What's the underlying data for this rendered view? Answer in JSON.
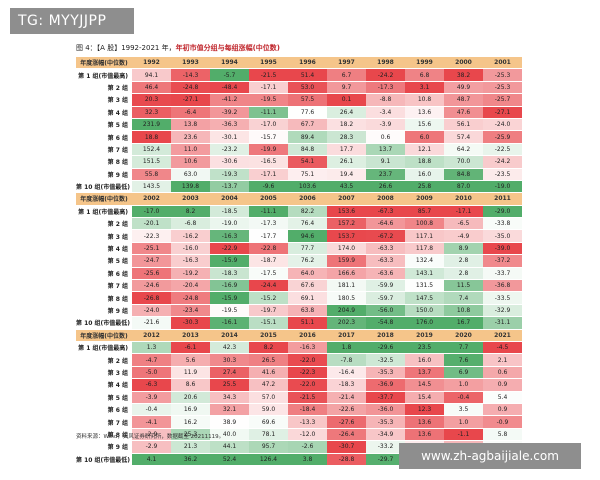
{
  "watermark_top": "TG: MYYJJPP",
  "watermark_bottom": "www.zh-agbaijiale.com",
  "title_prefix": "图 4：【A 股】1992-2021 年，",
  "title_highlight": "年初市值分组与每组涨幅(中位数)",
  "source": "资料来源：Wind，天风证券研究所，数据截至 20211119。",
  "header_label": "年度涨幅(中位数)",
  "row_labels": [
    "第 1 组(市值最高)",
    "第 2 组",
    "第 3 组",
    "第 4 组",
    "第 5 组",
    "第 6 组",
    "第 7 组",
    "第 8 组",
    "第 9 组",
    "第 10 组(市值最低)"
  ],
  "blocks": [
    {
      "years": [
        "1992",
        "1993",
        "1994",
        "1995",
        "1996",
        "1997",
        "1998",
        "1999",
        "2000",
        "2001"
      ],
      "rows": [
        [
          "94.1",
          "-14.3",
          "-5.7",
          "-21.5",
          "51.4",
          "6.7",
          "-24.2",
          "6.8",
          "38.2",
          "-25.3"
        ],
        [
          "46.4",
          "-24.8",
          "-48.4",
          "-17.1",
          "53.0",
          "9.7",
          "-17.3",
          "3.1",
          "49.9",
          "-25.3"
        ],
        [
          "20.3",
          "-27.1",
          "-41.2",
          "-19.5",
          "57.5",
          "0.1",
          "-8.8",
          "10.8",
          "48.7",
          "-25.7"
        ],
        [
          "32.3",
          "-6.4",
          "-39.2",
          "-11.1",
          "77.6",
          "26.4",
          "-3.4",
          "13.6",
          "47.6",
          "-27.1"
        ],
        [
          "231.9",
          "13.8",
          "-36.3",
          "-17.0",
          "67.7",
          "18.2",
          "-3.9",
          "15.6",
          "56.1",
          "-24.0"
        ],
        [
          "18.8",
          "23.6",
          "-30.1",
          "-15.7",
          "89.4",
          "28.3",
          "0.6",
          "6.0",
          "57.4",
          "-25.9"
        ],
        [
          "152.4",
          "11.0",
          "-23.2",
          "-19.9",
          "84.8",
          "17.7",
          "13.7",
          "12.1",
          "64.2",
          "-22.5"
        ],
        [
          "151.5",
          "10.6",
          "-30.6",
          "-16.5",
          "54.1",
          "26.1",
          "9.1",
          "18.8",
          "70.0",
          "-24.2"
        ],
        [
          "55.8",
          "63.0",
          "-19.3",
          "-17.1",
          "75.1",
          "19.4",
          "23.7",
          "16.0",
          "84.8",
          "-23.5"
        ],
        [
          "143.5",
          "139.8",
          "-13.7",
          "-9.6",
          "103.6",
          "43.5",
          "26.6",
          "25.8",
          "87.0",
          "-19.0"
        ]
      ]
    },
    {
      "years": [
        "2002",
        "2003",
        "2004",
        "2005",
        "2006",
        "2007",
        "2008",
        "2009",
        "2010",
        "2011"
      ],
      "rows": [
        [
          "-17.0",
          "8.2",
          "-18.5",
          "-11.1",
          "82.2",
          "153.6",
          "-67.3",
          "85.7",
          "-17.1",
          "-29.0"
        ],
        [
          "-20.1",
          "-6.8",
          "-19.0",
          "-17.3",
          "76.4",
          "157.2",
          "-64.6",
          "100.8",
          "-6.5",
          "-33.8"
        ],
        [
          "-22.3",
          "-16.2",
          "-16.3",
          "-17.7",
          "94.6",
          "153.7",
          "-67.2",
          "117.1",
          "-4.9",
          "-35.0"
        ],
        [
          "-25.1",
          "-16.0",
          "-22.9",
          "-22.8",
          "77.7",
          "174.0",
          "-63.3",
          "117.8",
          "8.9",
          "-39.0"
        ],
        [
          "-24.7",
          "-16.3",
          "-15.9",
          "-18.7",
          "76.2",
          "159.9",
          "-63.3",
          "132.4",
          "2.8",
          "-37.2"
        ],
        [
          "-25.6",
          "-19.2",
          "-18.3",
          "-17.5",
          "64.0",
          "166.6",
          "-63.6",
          "143.1",
          "2.8",
          "-33.7"
        ],
        [
          "-24.6",
          "-20.4",
          "-16.9",
          "-24.4",
          "67.6",
          "181.1",
          "-59.9",
          "131.5",
          "11.5",
          "-36.8"
        ],
        [
          "-26.8",
          "-24.8",
          "-15.9",
          "-15.2",
          "69.1",
          "180.5",
          "-59.7",
          "147.5",
          "7.4",
          "-33.5"
        ],
        [
          "-24.0",
          "-23.4",
          "-19.5",
          "-19.7",
          "63.8",
          "204.9",
          "-56.0",
          "150.0",
          "10.8",
          "-32.9"
        ],
        [
          "-21.6",
          "-30.3",
          "-16.1",
          "-15.1",
          "51.1",
          "202.3",
          "-54.8",
          "176.0",
          "16.7",
          "-31.1"
        ]
      ]
    },
    {
      "years": [
        "2012",
        "2013",
        "2014",
        "2015",
        "2016",
        "2017",
        "2018",
        "2019",
        "2020",
        "2021"
      ],
      "rows": [
        [
          "1.3",
          "-6.1",
          "42.3",
          "8.2",
          "-16.3",
          "1.8",
          "-29.6",
          "23.5",
          "7.7",
          "-4.5"
        ],
        [
          "-4.7",
          "5.6",
          "30.3",
          "26.5",
          "-22.0",
          "-7.8",
          "-32.5",
          "16.0",
          "7.6",
          "2.1"
        ],
        [
          "-5.0",
          "11.9",
          "27.4",
          "41.6",
          "-22.3",
          "-16.4",
          "-35.3",
          "13.7",
          "6.9",
          "0.6"
        ],
        [
          "-6.3",
          "8.6",
          "25.5",
          "47.2",
          "-22.0",
          "-18.3",
          "-36.9",
          "14.5",
          "1.0",
          "0.9"
        ],
        [
          "-3.9",
          "20.6",
          "34.3",
          "57.0",
          "-21.5",
          "-21.4",
          "-37.7",
          "15.4",
          "-0.4",
          "5.4"
        ],
        [
          "-0.4",
          "16.9",
          "32.1",
          "59.0",
          "-18.4",
          "-22.6",
          "-36.0",
          "12.3",
          "3.5",
          "0.9"
        ],
        [
          "-4.1",
          "16.2",
          "38.9",
          "69.6",
          "-13.3",
          "-27.6",
          "-35.3",
          "13.6",
          "1.0",
          "-0.9"
        ],
        [
          "-2.9",
          "25.3",
          "40.0",
          "78.1",
          "-12.0",
          "-26.4",
          "-34.9",
          "13.6",
          "-1.1",
          "5.8"
        ],
        [
          "-2.9",
          "21.3",
          "44.1",
          "95.7",
          "-2.6",
          "-30.7",
          "-33.2",
          "17.3",
          "1.6",
          "5.5"
        ],
        [
          "4.1",
          "36.2",
          "52.4",
          "126.4",
          "3.8",
          "-28.8",
          "-29.7",
          "20.3",
          "-0.6",
          "14.9"
        ]
      ]
    }
  ],
  "colors": {
    "header_bg": "#f5c58a",
    "red_strong": "#e8474c",
    "green_strong": "#52ad6a",
    "title_red": "#c0272d",
    "watermark_bg": "#8e8e8e"
  }
}
